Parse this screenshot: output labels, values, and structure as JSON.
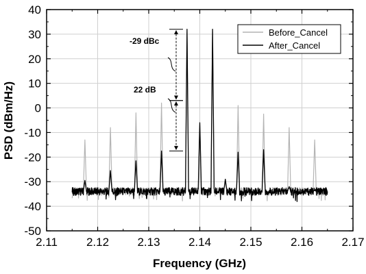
{
  "chart_data": {
    "type": "line",
    "xlabel": "Frequency (GHz)",
    "ylabel": "PSD (dBm/Hz)",
    "xlim": [
      2.11,
      2.17
    ],
    "ylim": [
      -50,
      40
    ],
    "xticks": [
      2.11,
      2.12,
      2.13,
      2.14,
      2.15,
      2.16,
      2.17
    ],
    "yticks": [
      -50,
      -40,
      -30,
      -20,
      -10,
      0,
      10,
      20,
      30,
      40
    ],
    "grid": true,
    "legend_position": "top-right",
    "noise_floor": -34,
    "series": [
      {
        "name": "Before_Cancel",
        "color": "#b4b4b4",
        "x": [
          2.1175,
          2.1225,
          2.1275,
          2.1325,
          2.1375,
          2.14,
          2.1425,
          2.145,
          2.1475,
          2.1525,
          2.1575,
          2.1625
        ],
        "y": [
          -13,
          -8,
          -2,
          2,
          31,
          -7,
          31,
          -30,
          1,
          -2.5,
          -8,
          -13
        ]
      },
      {
        "name": "After_Cancel",
        "color": "#000000",
        "x": [
          2.1175,
          2.1225,
          2.1275,
          2.1325,
          2.1375,
          2.14,
          2.1425,
          2.145,
          2.1475,
          2.1525,
          2.1575,
          2.1625
        ],
        "y": [
          -29.5,
          -25.5,
          -21.5,
          -17.5,
          32,
          -6,
          32,
          -29,
          -18,
          -17,
          -32,
          -33.5
        ]
      }
    ],
    "annotations": [
      {
        "text": "-29 dBc",
        "from": 32,
        "to": 3
      },
      {
        "text": "22 dB",
        "from": 3,
        "to": -17.5
      }
    ]
  }
}
